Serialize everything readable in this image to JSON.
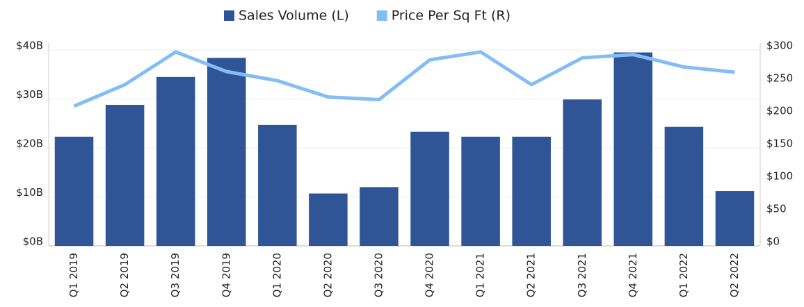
{
  "chart_data": {
    "type": "bar-line",
    "categories": [
      "Q1 2019",
      "Q2 2019",
      "Q3 2019",
      "Q4 2019",
      "Q1 2020",
      "Q2 2020",
      "Q3 2020",
      "Q4 2020",
      "Q1 2021",
      "Q2 2021",
      "Q3 2021",
      "Q4 2021",
      "Q1 2022",
      "Q2 2022"
    ],
    "series": [
      {
        "name": "Sales Volume (L)",
        "type": "bar",
        "color": "#2f5597",
        "values": [
          22.3,
          28.8,
          34.5,
          38.4,
          24.7,
          10.7,
          12.0,
          23.3,
          22.3,
          22.3,
          29.9,
          39.5,
          24.3,
          11.2
        ]
      },
      {
        "name": "Price Per Sq Ft (R)",
        "type": "line",
        "axis": "y2",
        "color": "#84bdf5",
        "values": [
          214,
          247,
          297,
          267,
          253,
          228,
          224,
          285,
          297,
          247,
          288,
          293,
          274,
          266
        ]
      }
    ],
    "ylim": [
      0,
      40
    ],
    "yticks": [
      {
        "value": 0,
        "label": "$0B"
      },
      {
        "value": 10,
        "label": "$10B"
      },
      {
        "value": 20,
        "label": "$20B"
      },
      {
        "value": 30,
        "label": "$30B"
      },
      {
        "value": 40,
        "label": "$40B"
      }
    ],
    "y2lim": [
      0,
      300
    ],
    "y2ticks": [
      {
        "value": 0,
        "label": "$0"
      },
      {
        "value": 50,
        "label": "$50"
      },
      {
        "value": 100,
        "label": "$100"
      },
      {
        "value": 150,
        "label": "$150"
      },
      {
        "value": 200,
        "label": "$200"
      },
      {
        "value": 250,
        "label": "$250"
      },
      {
        "value": 300,
        "label": "$300"
      }
    ],
    "grid": true
  }
}
